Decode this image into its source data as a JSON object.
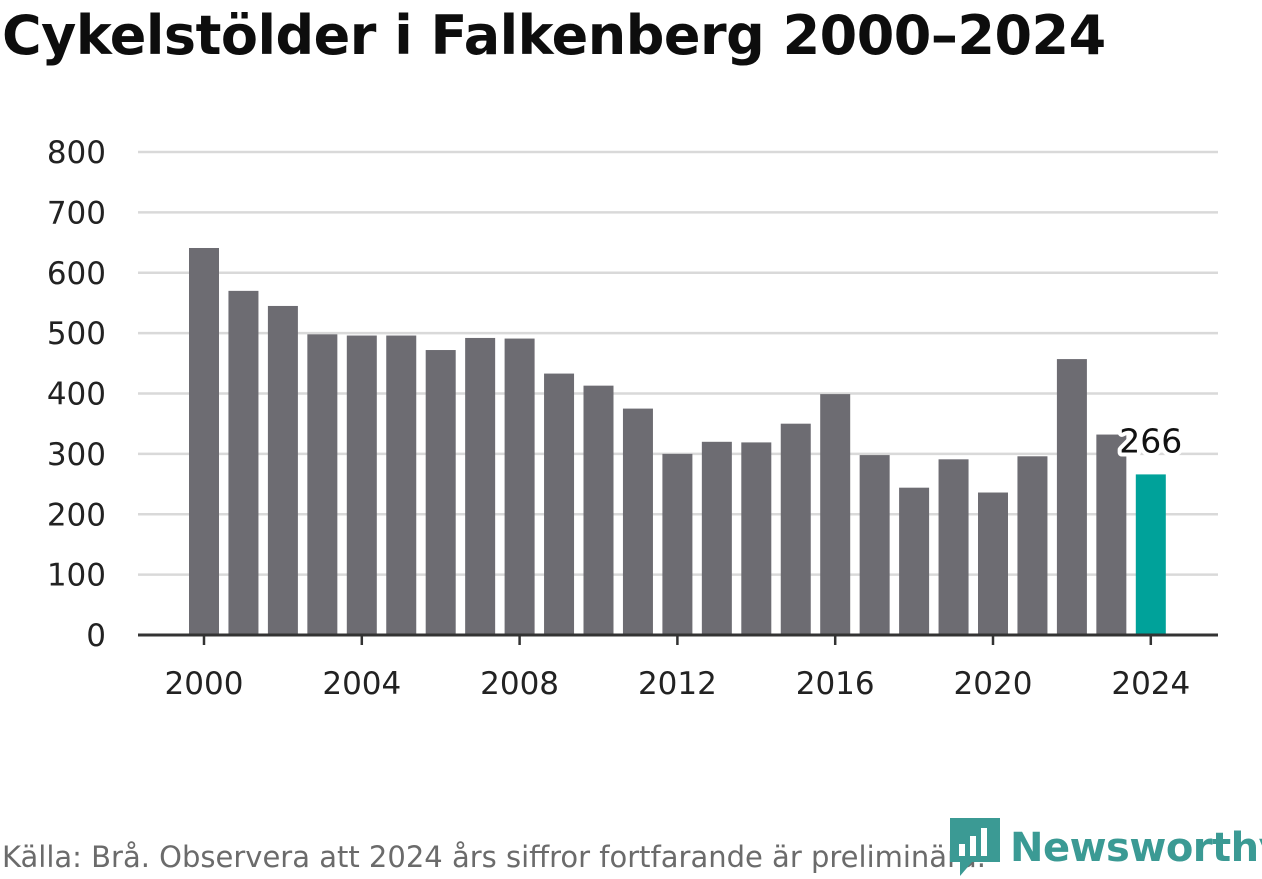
{
  "source_text": "Källa: Brå. Observera att 2024 års siffror fortfarande är preliminära.",
  "logo_text": "Newsworthy",
  "colors": {
    "bar": "#6d6c72",
    "highlight": "#00a29a",
    "grid": "#d9d9d9",
    "axis": "#333333",
    "logo": "#3b9a94"
  },
  "chart_data": {
    "type": "bar",
    "title": "Cykelstölder i Falkenberg 2000–2024",
    "xlabel": "",
    "ylabel": "",
    "ylim": [
      0,
      800
    ],
    "yticks": [
      0,
      100,
      200,
      300,
      400,
      500,
      600,
      700,
      800
    ],
    "xtick_labels": [
      "2000",
      "2004",
      "2008",
      "2012",
      "2016",
      "2020",
      "2024"
    ],
    "categories": [
      "2000",
      "2001",
      "2002",
      "2003",
      "2004",
      "2005",
      "2006",
      "2007",
      "2008",
      "2009",
      "2010",
      "2011",
      "2012",
      "2013",
      "2014",
      "2015",
      "2016",
      "2017",
      "2018",
      "2019",
      "2020",
      "2021",
      "2022",
      "2023",
      "2024"
    ],
    "values": [
      641,
      570,
      545,
      498,
      496,
      496,
      472,
      492,
      491,
      433,
      413,
      375,
      300,
      320,
      319,
      350,
      399,
      298,
      244,
      291,
      236,
      296,
      457,
      332,
      266
    ],
    "highlight": {
      "category": "2024",
      "label": "266"
    }
  }
}
